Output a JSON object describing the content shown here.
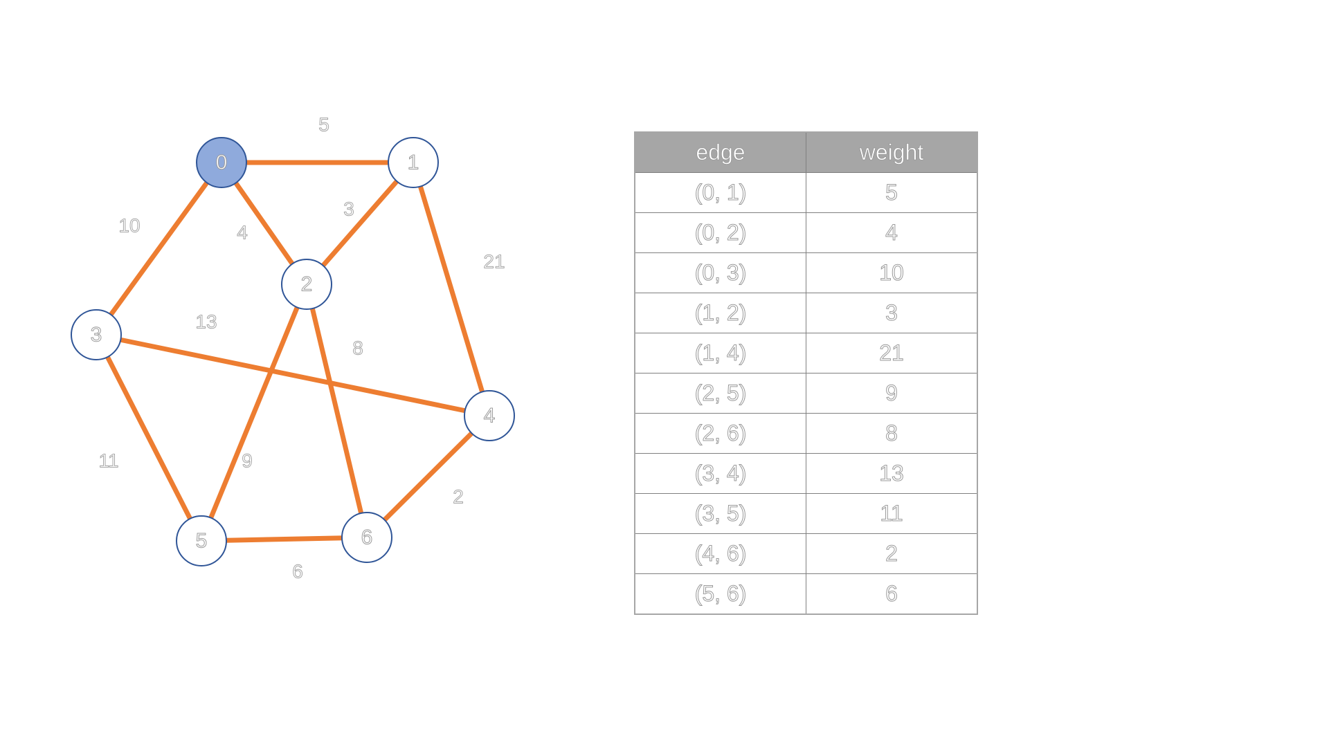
{
  "graph": {
    "nodes": [
      {
        "id": "0",
        "active": true
      },
      {
        "id": "1",
        "active": false
      },
      {
        "id": "2",
        "active": false
      },
      {
        "id": "3",
        "active": false
      },
      {
        "id": "4",
        "active": false
      },
      {
        "id": "5",
        "active": false
      },
      {
        "id": "6",
        "active": false
      }
    ],
    "edges": [
      {
        "from": "0",
        "to": "1",
        "weight": "5"
      },
      {
        "from": "0",
        "to": "2",
        "weight": "4"
      },
      {
        "from": "0",
        "to": "3",
        "weight": "10"
      },
      {
        "from": "1",
        "to": "2",
        "weight": "3"
      },
      {
        "from": "1",
        "to": "4",
        "weight": "21"
      },
      {
        "from": "2",
        "to": "5",
        "weight": "9"
      },
      {
        "from": "2",
        "to": "6",
        "weight": "8"
      },
      {
        "from": "3",
        "to": "4",
        "weight": "13"
      },
      {
        "from": "3",
        "to": "5",
        "weight": "11"
      },
      {
        "from": "4",
        "to": "6",
        "weight": "2"
      },
      {
        "from": "5",
        "to": "6",
        "weight": "6"
      }
    ],
    "colors": {
      "edge": "#ED7D31",
      "node_border": "#2F5597",
      "active_node_fill": "#8FAADC"
    }
  },
  "table": {
    "headers": [
      "edge",
      "weight"
    ],
    "rows": [
      [
        "(0, 1)",
        "5"
      ],
      [
        "(0, 2)",
        "4"
      ],
      [
        "(0, 3)",
        "10"
      ],
      [
        "(1, 2)",
        "3"
      ],
      [
        "(1, 4)",
        "21"
      ],
      [
        "(2, 5)",
        "9"
      ],
      [
        "(2, 6)",
        "8"
      ],
      [
        "(3, 4)",
        "13"
      ],
      [
        "(3, 5)",
        "11"
      ],
      [
        "(4, 6)",
        "2"
      ],
      [
        "(5, 6)",
        "6"
      ]
    ]
  }
}
